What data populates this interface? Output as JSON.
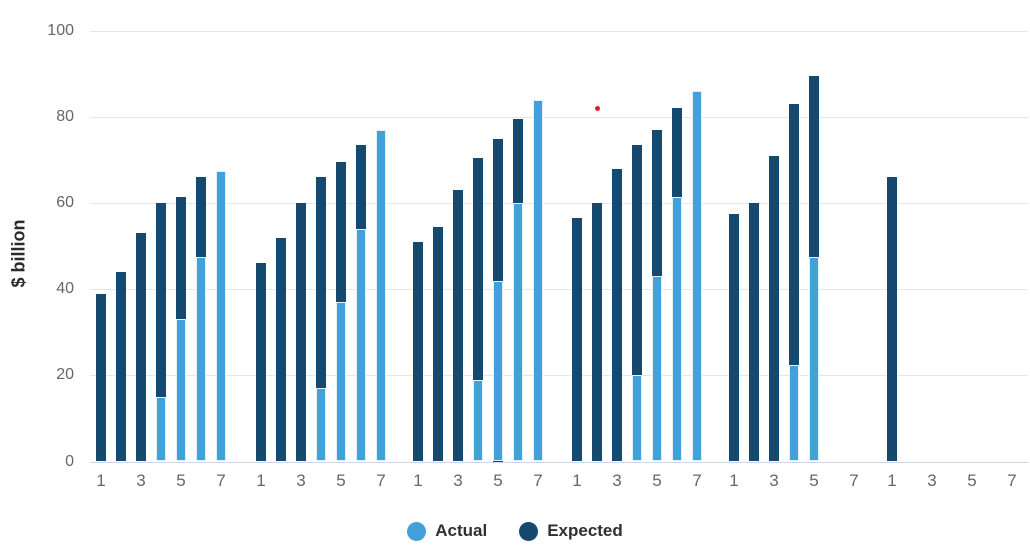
{
  "chart_data": {
    "type": "bar",
    "title": "",
    "xlabel": "",
    "ylabel": "$ billion",
    "ylim": [
      0,
      100
    ],
    "y_ticks": [
      0,
      20,
      40,
      60,
      80,
      100
    ],
    "x_tick_labels_per_group": [
      "1",
      "3",
      "5",
      "7"
    ],
    "grid": true,
    "legend_position": "bottom-center",
    "legend": [
      {
        "name": "Actual",
        "color": "#41a1d8"
      },
      {
        "name": "Expected",
        "color": "#154a6e"
      }
    ],
    "groups": [
      {
        "bars": [
          {
            "pos": 1,
            "expected": 39
          },
          {
            "pos": 2,
            "expected": 44
          },
          {
            "pos": 3,
            "expected": 53
          },
          {
            "pos": 4,
            "actual": 15,
            "expected": 60
          },
          {
            "pos": 5,
            "actual": 33,
            "expected": 61.5
          },
          {
            "pos": 6,
            "actual": 47.5,
            "expected": 66
          },
          {
            "pos": 7,
            "actual": 67.5
          }
        ]
      },
      {
        "bars": [
          {
            "pos": 1,
            "expected": 46
          },
          {
            "pos": 2,
            "expected": 52
          },
          {
            "pos": 3,
            "expected": 60
          },
          {
            "pos": 4,
            "actual": 17,
            "expected": 66
          },
          {
            "pos": 5,
            "actual": 37,
            "expected": 69.5
          },
          {
            "pos": 6,
            "actual": 54,
            "expected": 73.5
          },
          {
            "pos": 7,
            "actual": 77
          }
        ]
      },
      {
        "bars": [
          {
            "pos": 1,
            "expected": 51
          },
          {
            "pos": 2,
            "expected": 54.5
          },
          {
            "pos": 3,
            "expected": 63
          },
          {
            "pos": 4,
            "actual": 19,
            "expected": 70.5
          },
          {
            "pos": 5,
            "actual": 42,
            "expected": 75
          },
          {
            "pos": 6,
            "actual": 60,
            "expected": 79.5
          },
          {
            "pos": 7,
            "actual": 84
          }
        ]
      },
      {
        "bars": [
          {
            "pos": 1,
            "expected": 56.5
          },
          {
            "pos": 2,
            "expected": 60
          },
          {
            "pos": 3,
            "expected": 68
          },
          {
            "pos": 4,
            "actual": 20,
            "expected": 73.5
          },
          {
            "pos": 5,
            "actual": 43,
            "expected": 77
          },
          {
            "pos": 6,
            "actual": 61.5,
            "expected": 82
          },
          {
            "pos": 7,
            "actual": 86
          }
        ]
      },
      {
        "bars": [
          {
            "pos": 1,
            "expected": 57.5
          },
          {
            "pos": 2,
            "expected": 60
          },
          {
            "pos": 3,
            "expected": 71
          },
          {
            "pos": 4,
            "actual": 22.5,
            "expected": 83
          },
          {
            "pos": 5,
            "actual": 47.5,
            "expected": 89.5
          }
        ]
      },
      {
        "bars": [
          {
            "pos": 1,
            "expected": 66
          }
        ]
      }
    ],
    "annotation_dot": {
      "group": 4,
      "slot": 2,
      "value": 82,
      "color": "#e2201c"
    }
  },
  "colors": {
    "background": "#ffffff",
    "gridline": "#e6e6e6",
    "axis_line": "#ccd6eb",
    "tick_text": "#666666",
    "ylabel_text": "#2b2b2b"
  }
}
